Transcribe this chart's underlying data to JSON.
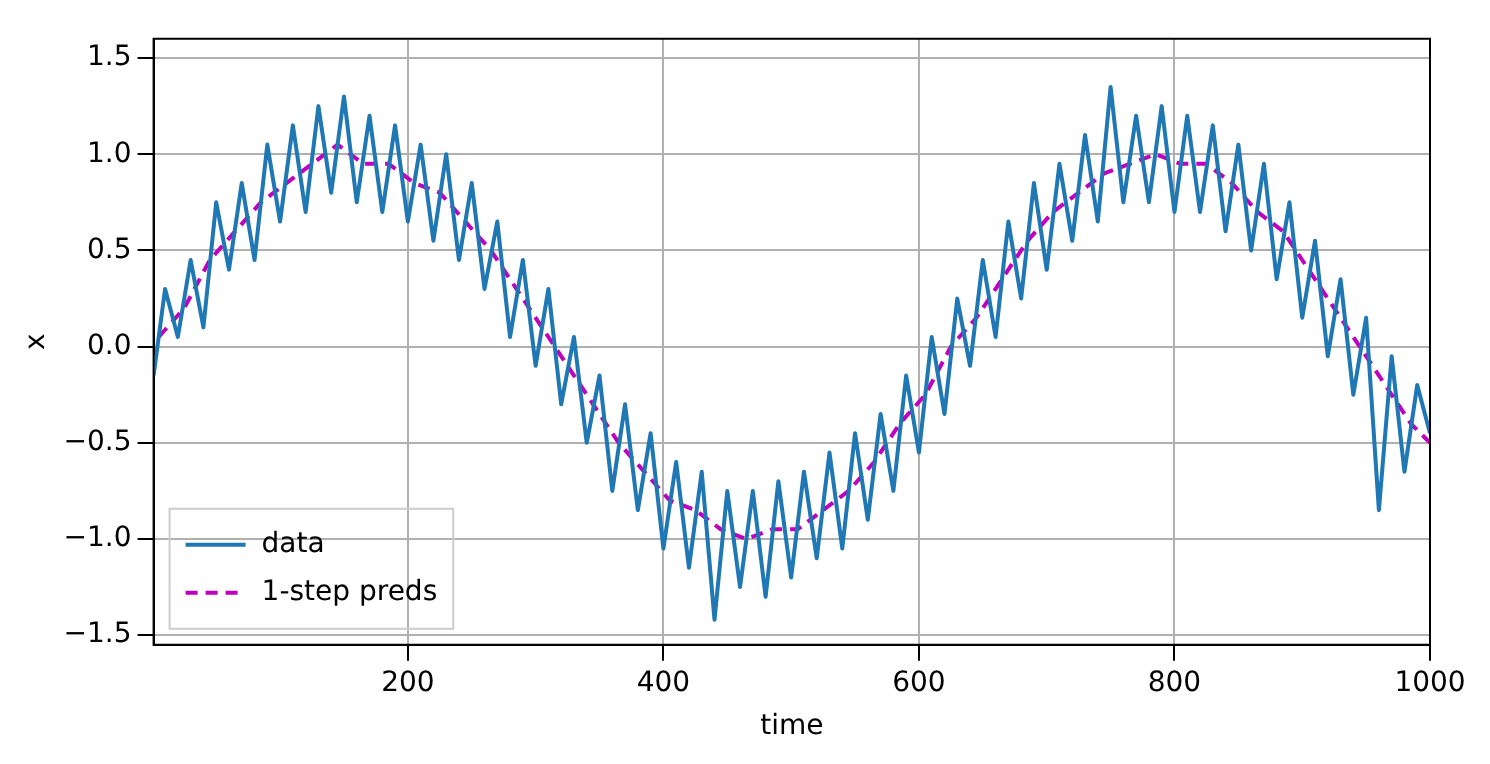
{
  "chart_data": {
    "type": "line",
    "xlabel": "time",
    "ylabel": "x",
    "xlim": [
      1,
      1000
    ],
    "xticks": [
      200,
      400,
      600,
      800,
      1000
    ],
    "ylim": [
      -1.55,
      1.6
    ],
    "yticks": [
      {
        "value": -1.5,
        "label": "−1.5"
      },
      {
        "value": -1.0,
        "label": "−1.0"
      },
      {
        "value": -0.5,
        "label": "−0.5"
      },
      {
        "value": 0.0,
        "label": "0.0"
      },
      {
        "value": 0.5,
        "label": "0.5"
      },
      {
        "value": 1.0,
        "label": "1.0"
      },
      {
        "value": 1.5,
        "label": "1.5"
      }
    ],
    "grid": true,
    "legend": "bottom left",
    "series": [
      {
        "name": "data",
        "color": "#1f77b4",
        "line_style": "solid",
        "x": [
          1,
          10,
          20,
          30,
          40,
          50,
          60,
          70,
          80,
          90,
          100,
          110,
          120,
          130,
          140,
          150,
          160,
          170,
          180,
          190,
          200,
          210,
          220,
          230,
          240,
          250,
          260,
          270,
          280,
          290,
          300,
          310,
          320,
          330,
          340,
          350,
          360,
          370,
          380,
          390,
          400,
          410,
          420,
          430,
          440,
          450,
          460,
          470,
          480,
          490,
          500,
          510,
          520,
          530,
          540,
          550,
          560,
          570,
          580,
          590,
          600,
          610,
          620,
          630,
          640,
          650,
          660,
          670,
          680,
          690,
          700,
          710,
          720,
          730,
          740,
          750,
          760,
          770,
          780,
          790,
          800,
          810,
          820,
          830,
          840,
          850,
          860,
          870,
          880,
          890,
          900,
          910,
          920,
          930,
          940,
          950,
          960,
          970,
          980,
          990,
          1000
        ],
        "values": [
          -0.15,
          0.3,
          0.05,
          0.45,
          0.1,
          0.75,
          0.4,
          0.85,
          0.45,
          1.05,
          0.65,
          1.15,
          0.7,
          1.25,
          0.8,
          1.3,
          0.75,
          1.2,
          0.7,
          1.15,
          0.65,
          1.05,
          0.55,
          1.0,
          0.45,
          0.85,
          0.3,
          0.65,
          0.05,
          0.45,
          -0.1,
          0.3,
          -0.3,
          0.05,
          -0.5,
          -0.15,
          -0.75,
          -0.3,
          -0.85,
          -0.45,
          -1.05,
          -0.6,
          -1.15,
          -0.65,
          -1.42,
          -0.75,
          -1.25,
          -0.75,
          -1.3,
          -0.7,
          -1.2,
          -0.65,
          -1.1,
          -0.55,
          -1.05,
          -0.45,
          -0.9,
          -0.35,
          -0.75,
          -0.15,
          -0.55,
          0.05,
          -0.35,
          0.25,
          -0.1,
          0.45,
          0.05,
          0.65,
          0.25,
          0.85,
          0.4,
          0.95,
          0.55,
          1.1,
          0.65,
          1.35,
          0.75,
          1.2,
          0.75,
          1.25,
          0.7,
          1.2,
          0.7,
          1.15,
          0.6,
          1.05,
          0.5,
          0.95,
          0.35,
          0.75,
          0.15,
          0.55,
          -0.05,
          0.35,
          -0.25,
          0.15,
          -0.85,
          -0.05,
          -0.65,
          -0.2,
          -0.45
        ]
      },
      {
        "name": "1-step preds",
        "color": "#bf00bf",
        "line_style": "dashed",
        "x": [
          5,
          25,
          45,
          65,
          85,
          105,
          125,
          145,
          165,
          185,
          205,
          225,
          245,
          265,
          285,
          305,
          325,
          345,
          365,
          385,
          405,
          425,
          445,
          465,
          485,
          505,
          525,
          545,
          565,
          585,
          605,
          625,
          645,
          665,
          685,
          705,
          725,
          745,
          765,
          785,
          805,
          825,
          845,
          865,
          885,
          905,
          925,
          945,
          965,
          985,
          1000
        ],
        "values": [
          0.05,
          0.2,
          0.45,
          0.6,
          0.75,
          0.85,
          0.95,
          1.05,
          0.95,
          0.95,
          0.85,
          0.8,
          0.65,
          0.5,
          0.3,
          0.1,
          -0.1,
          -0.3,
          -0.5,
          -0.65,
          -0.8,
          -0.85,
          -0.95,
          -1.0,
          -0.95,
          -0.95,
          -0.85,
          -0.75,
          -0.6,
          -0.4,
          -0.25,
          0.0,
          0.15,
          0.35,
          0.55,
          0.7,
          0.8,
          0.9,
          0.95,
          1.0,
          0.95,
          0.95,
          0.85,
          0.7,
          0.6,
          0.4,
          0.2,
          0.0,
          -0.2,
          -0.4,
          -0.5
        ]
      }
    ]
  }
}
